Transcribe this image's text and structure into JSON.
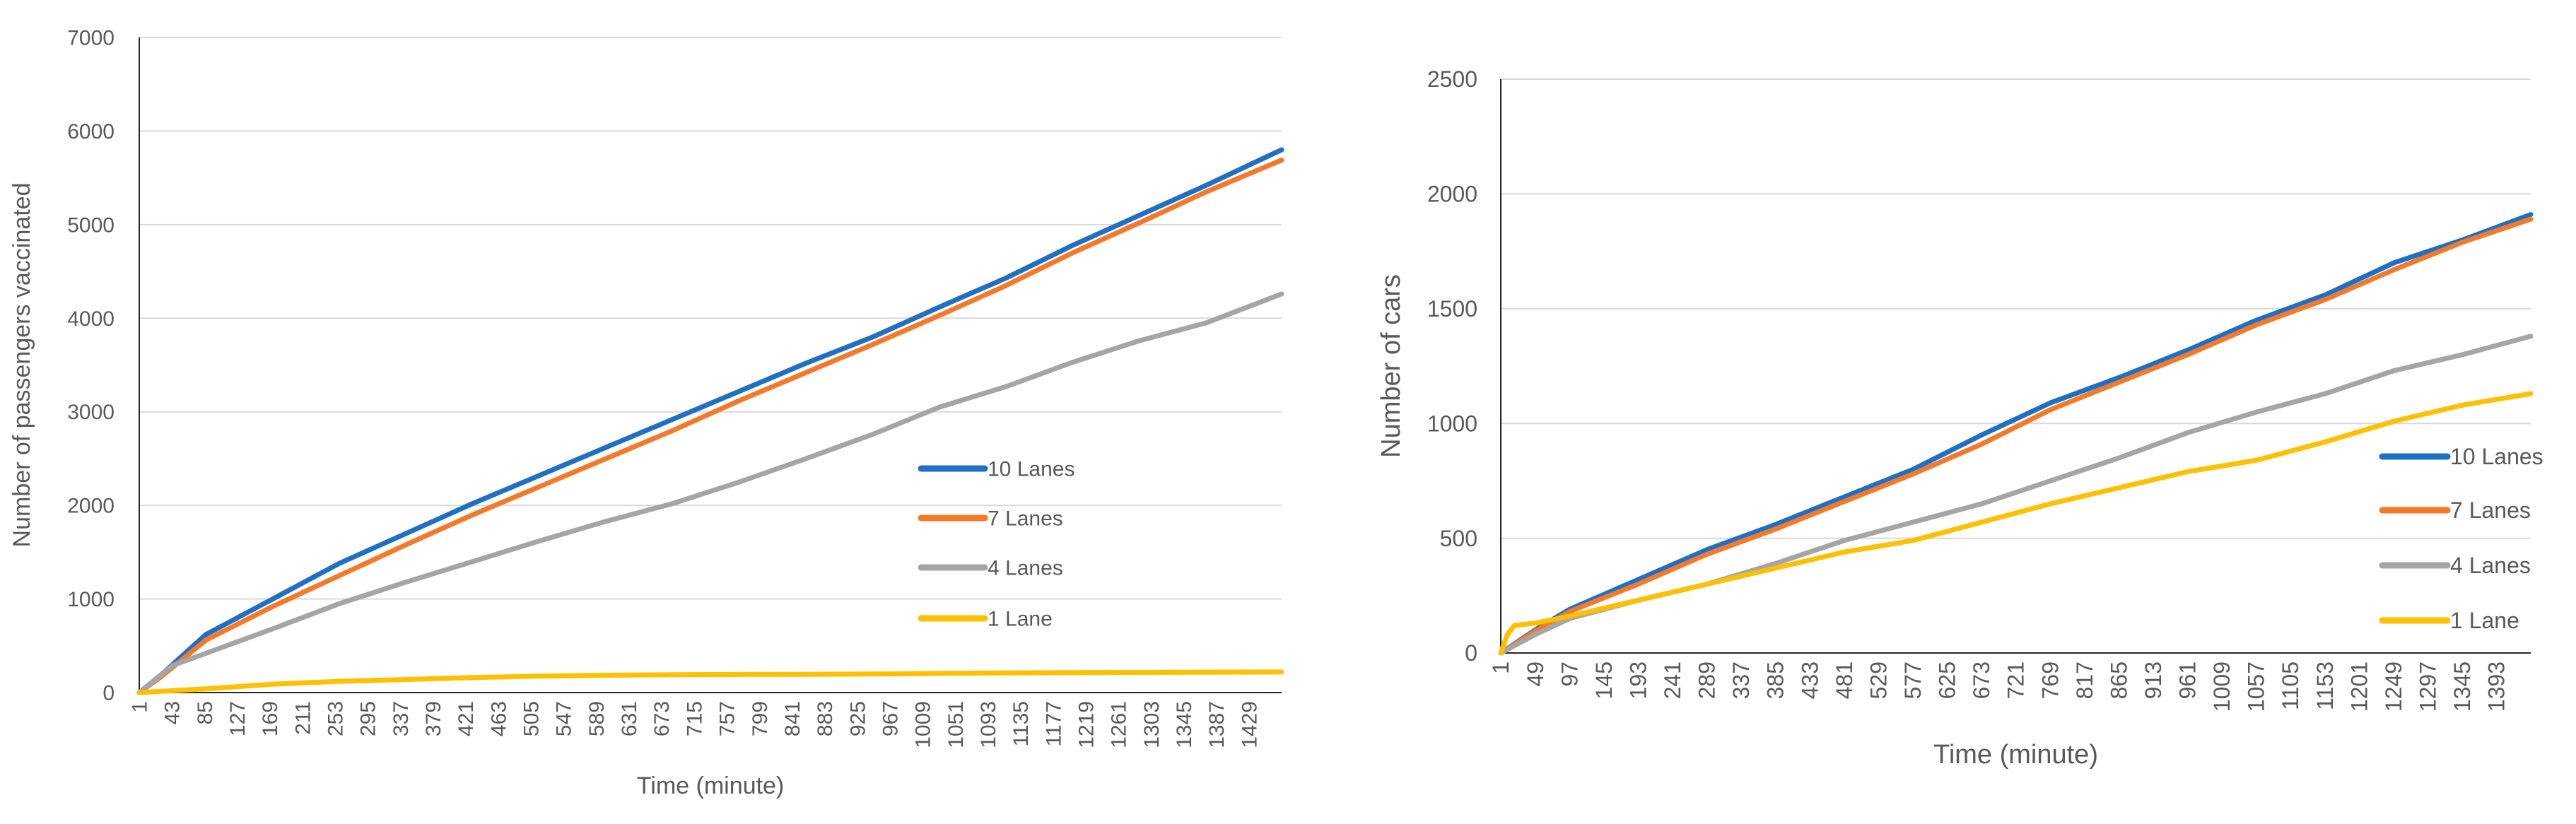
{
  "chart_data": [
    {
      "type": "line",
      "xlabel": "Time (minute)",
      "ylabel": "Number of passengers vaccinated",
      "ylim": [
        0,
        7000
      ],
      "yticks": [
        0,
        1000,
        2000,
        3000,
        4000,
        5000,
        6000,
        7000
      ],
      "x_tick_labels": [
        "1",
        "43",
        "85",
        "127",
        "169",
        "211",
        "253",
        "295",
        "337",
        "379",
        "421",
        "463",
        "505",
        "547",
        "589",
        "631",
        "673",
        "715",
        "757",
        "799",
        "841",
        "883",
        "925",
        "967",
        "1009",
        "1051",
        "1093",
        "1135",
        "1177",
        "1219",
        "1261",
        "1303",
        "1345",
        "1387",
        "1429"
      ],
      "xlim": [
        1,
        1440
      ],
      "grid": "horizontal",
      "legend_position": "right",
      "series": [
        {
          "name": "10 Lanes",
          "color": "#1f6fc5",
          "x": [
            1,
            30,
            85,
            169,
            253,
            337,
            421,
            505,
            589,
            673,
            757,
            841,
            925,
            1009,
            1093,
            1177,
            1261,
            1345,
            1440
          ],
          "values": [
            0,
            200,
            620,
            1000,
            1380,
            1700,
            2020,
            2320,
            2620,
            2920,
            3220,
            3520,
            3800,
            4120,
            4430,
            4780,
            5100,
            5420,
            5800
          ]
        },
        {
          "name": "7 Lanes",
          "color": "#f47a2a",
          "x": [
            1,
            30,
            85,
            169,
            253,
            337,
            421,
            505,
            589,
            673,
            757,
            841,
            925,
            1009,
            1093,
            1177,
            1261,
            1345,
            1440
          ],
          "values": [
            0,
            180,
            560,
            920,
            1250,
            1580,
            1900,
            2200,
            2500,
            2800,
            3120,
            3420,
            3720,
            4030,
            4350,
            4700,
            5020,
            5350,
            5690
          ]
        },
        {
          "name": "4 Lanes",
          "color": "#a5a5a5",
          "x": [
            1,
            43,
            85,
            169,
            253,
            337,
            421,
            505,
            589,
            673,
            757,
            841,
            925,
            1009,
            1093,
            1177,
            1261,
            1345,
            1440
          ],
          "values": [
            0,
            290,
            420,
            680,
            950,
            1180,
            1400,
            1620,
            1830,
            2020,
            2250,
            2500,
            2760,
            3050,
            3270,
            3530,
            3760,
            3950,
            4260
          ]
        },
        {
          "name": "1 Lane",
          "color": "#ffc000",
          "x": [
            1,
            85,
            169,
            253,
            337,
            421,
            505,
            589,
            673,
            757,
            841,
            925,
            1009,
            1093,
            1177,
            1261,
            1345,
            1440
          ],
          "values": [
            0,
            40,
            90,
            120,
            140,
            160,
            175,
            185,
            190,
            193,
            195,
            198,
            205,
            210,
            213,
            215,
            218,
            220
          ]
        }
      ]
    },
    {
      "type": "line",
      "xlabel": "Time (minute)",
      "ylabel": "Number of cars",
      "ylim": [
        0,
        2500
      ],
      "yticks": [
        0,
        500,
        1000,
        1500,
        2000,
        2500
      ],
      "x_tick_labels": [
        "1",
        "49",
        "97",
        "145",
        "193",
        "241",
        "289",
        "337",
        "385",
        "433",
        "481",
        "529",
        "577",
        "625",
        "673",
        "721",
        "769",
        "817",
        "865",
        "913",
        "961",
        "1009",
        "1057",
        "1105",
        "1153",
        "1201",
        "1249",
        "1297",
        "1345",
        "1393"
      ],
      "xlim": [
        1,
        1440
      ],
      "grid": "horizontal",
      "legend_position": "right",
      "series": [
        {
          "name": "10 Lanes",
          "color": "#1f6fc5",
          "x": [
            1,
            49,
            97,
            193,
            289,
            385,
            481,
            577,
            673,
            769,
            865,
            961,
            1057,
            1153,
            1249,
            1345,
            1440
          ],
          "values": [
            0,
            100,
            190,
            320,
            450,
            560,
            680,
            800,
            950,
            1090,
            1200,
            1320,
            1450,
            1560,
            1700,
            1800,
            1910
          ]
        },
        {
          "name": "7 Lanes",
          "color": "#f47a2a",
          "x": [
            1,
            49,
            97,
            193,
            289,
            385,
            481,
            577,
            673,
            769,
            865,
            961,
            1057,
            1153,
            1249,
            1345,
            1440
          ],
          "values": [
            0,
            95,
            180,
            300,
            430,
            540,
            660,
            780,
            910,
            1060,
            1180,
            1300,
            1430,
            1540,
            1670,
            1790,
            1890
          ]
        },
        {
          "name": "4 Lanes",
          "color": "#a5a5a5",
          "x": [
            1,
            49,
            97,
            193,
            289,
            385,
            481,
            577,
            673,
            769,
            865,
            961,
            1057,
            1153,
            1249,
            1345,
            1440
          ],
          "values": [
            0,
            80,
            150,
            230,
            300,
            390,
            490,
            570,
            650,
            750,
            850,
            960,
            1050,
            1130,
            1230,
            1300,
            1380
          ]
        },
        {
          "name": "1 Lane",
          "color": "#ffc000",
          "x": [
            1,
            10,
            20,
            49,
            97,
            193,
            289,
            385,
            481,
            577,
            673,
            769,
            865,
            961,
            1057,
            1153,
            1249,
            1345,
            1440
          ],
          "values": [
            0,
            80,
            120,
            130,
            160,
            230,
            300,
            370,
            440,
            490,
            570,
            650,
            720,
            790,
            840,
            920,
            1010,
            1080,
            1130
          ]
        }
      ]
    }
  ]
}
